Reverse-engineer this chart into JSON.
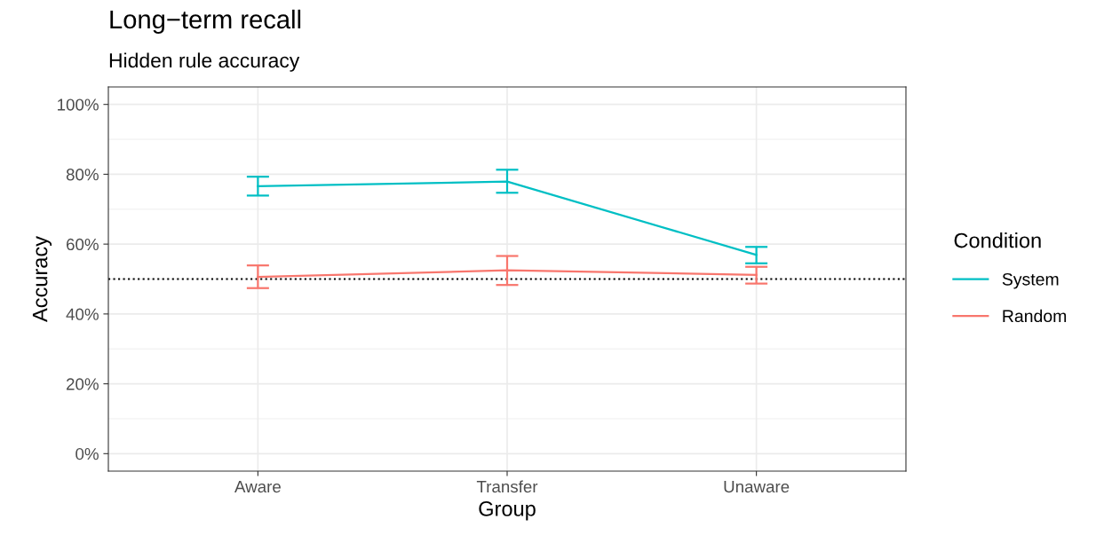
{
  "chart_data": {
    "type": "line",
    "title": "Long−term recall",
    "subtitle": "Hidden rule accuracy",
    "xlabel": "Group",
    "ylabel": "Accuracy",
    "legend_title": "Condition",
    "categories": [
      "Aware",
      "Transfer",
      "Unaware"
    ],
    "series": [
      {
        "name": "System",
        "color": "#00bfc4",
        "values": [
          76.6,
          77.9,
          56.9
        ],
        "errors": [
          [
            73.9,
            79.3
          ],
          [
            74.7,
            81.3
          ],
          [
            54.5,
            59.2
          ]
        ]
      },
      {
        "name": "Random",
        "color": "#f8766d",
        "values": [
          50.6,
          52.5,
          51.2
        ],
        "errors": [
          [
            47.4,
            53.9
          ],
          [
            48.3,
            56.6
          ],
          [
            48.7,
            53.5
          ]
        ]
      }
    ],
    "ylim": [
      -5,
      105
    ],
    "yticks": [
      {
        "value": 0,
        "label": "0%"
      },
      {
        "value": 20,
        "label": "20%"
      },
      {
        "value": 40,
        "label": "40%"
      },
      {
        "value": 60,
        "label": "60%"
      },
      {
        "value": 80,
        "label": "80%"
      },
      {
        "value": 100,
        "label": "100%"
      }
    ],
    "ref_lines": [
      {
        "axis": "y",
        "value": 50,
        "color": "#000000",
        "line_style": "dotted"
      }
    ],
    "grid": true,
    "legend": "right",
    "marker": "none",
    "line_style": "solid"
  }
}
